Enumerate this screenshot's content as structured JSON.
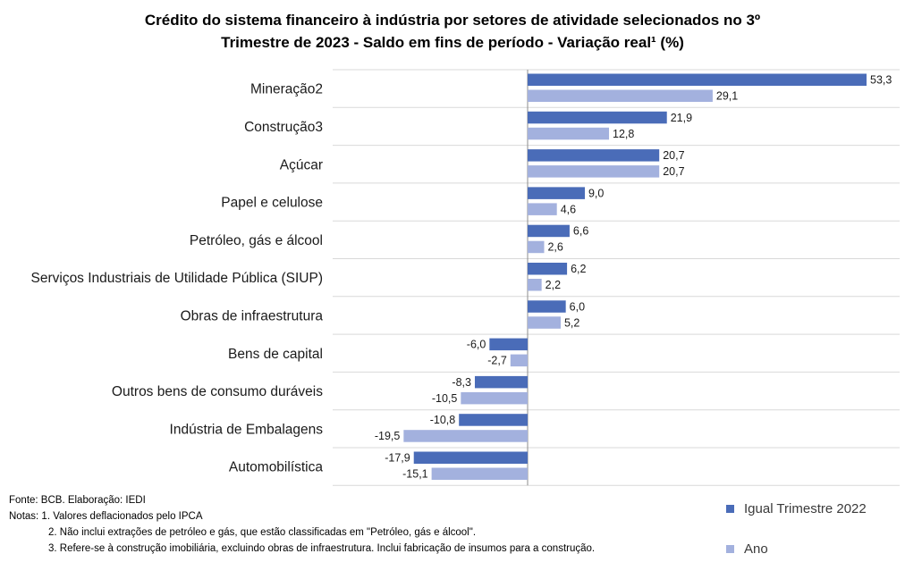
{
  "title_line1": "Crédito do sistema financeiro à indústria  por setores de atividade selecionados  no 3º",
  "title_line2": "Trimestre de 2023 -  Saldo em fins de período  - Variação  real¹ (%)",
  "chart_data": {
    "type": "bar",
    "orientation": "horizontal",
    "title": "Crédito do sistema financeiro à indústria  por setores de atividade selecionados  no 3º Trimestre de 2023 -  Saldo em fins de período  - Variação  real¹ (%)",
    "categories": [
      "Mineração2",
      "Construção3",
      "Açúcar",
      "Papel e celulose",
      "Petróleo, gás e álcool",
      "Serviços Industriais de Utilidade Pública (SIUP)",
      "Obras de infraestrutura",
      "Bens de capital",
      "Outros bens de consumo duráveis",
      "Indústria de Embalagens",
      "Automobilística"
    ],
    "series": [
      {
        "name": "Igual Trimestre 2022",
        "color": "#4a6cb8",
        "values": [
          53.3,
          21.9,
          20.7,
          9.0,
          6.6,
          6.2,
          6.0,
          -6.0,
          -8.3,
          -10.8,
          -17.9
        ],
        "labels": [
          "53,3",
          "21,9",
          "20,7",
          "9,0",
          "6,6",
          "6,2",
          "6,0",
          "-6,0",
          "-8,3",
          "-10,8",
          "-17,9"
        ]
      },
      {
        "name": "Ano",
        "color": "#a3b1de",
        "values": [
          29.1,
          12.8,
          20.7,
          4.6,
          2.6,
          2.2,
          5.2,
          -2.7,
          -10.5,
          -19.5,
          -15.1
        ],
        "labels": [
          "29,1",
          "12,8",
          "20,7",
          "4,6",
          "2,6",
          "2,2",
          "5,2",
          "-2,7",
          "-10,5",
          "-19,5",
          "-15,1"
        ]
      }
    ],
    "grid": true,
    "legend_position": "bottom-right"
  },
  "notes": {
    "fonte": "Fonte: BCB. Elaboração: IEDI",
    "nota1": "Notas: 1.  Valores deflacionados pelo IPCA",
    "nota2": "2.  Não inclui extrações de petróleo e gás, que estão classificadas em \"Petróleo, gás e álcool\".",
    "nota3": "3.  Refere-se à construção imobiliária, excluindo obras de infraestrutura. Inclui fabricação de insumos para a construção."
  },
  "legend": {
    "series1": "Igual Trimestre 2022",
    "series2": "Ano"
  }
}
